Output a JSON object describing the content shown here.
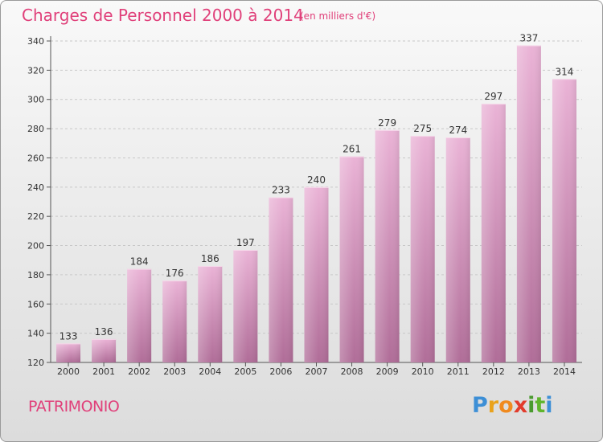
{
  "header": {
    "title": "Charges de Personnel 2000 à 2014",
    "subtitle": "(en milliers d'€)"
  },
  "footer": {
    "label": "PATRIMONIO",
    "logo_letters": [
      "P",
      "r",
      "o",
      "x",
      "i",
      "t",
      "i"
    ],
    "logo_colors": [
      "#3d8fd6",
      "#e9a21c",
      "#f08a1f",
      "#e23c2c",
      "#4a9a2f",
      "#5fb52c",
      "#3d8fd6"
    ]
  },
  "colors": {
    "bar_top": "#eab3d6",
    "bar_bottom": "#b06d98",
    "title": "#e0407a"
  },
  "chart_data": {
    "type": "bar",
    "title": "Charges de Personnel 2000 à 2014",
    "subtitle": "(en milliers d'€)",
    "categories": [
      "2000",
      "2001",
      "2002",
      "2003",
      "2004",
      "2005",
      "2006",
      "2007",
      "2008",
      "2009",
      "2010",
      "2011",
      "2012",
      "2013",
      "2014"
    ],
    "values": [
      133,
      136,
      184,
      176,
      186,
      197,
      233,
      240,
      261,
      279,
      275,
      274,
      297,
      337,
      314
    ],
    "ylim": [
      120,
      340
    ],
    "yticks": [
      120,
      140,
      160,
      180,
      200,
      220,
      240,
      260,
      280,
      300,
      320,
      340
    ],
    "grid": true
  }
}
